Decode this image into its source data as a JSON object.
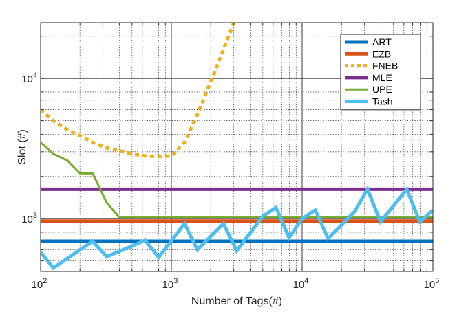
{
  "chart_data": {
    "type": "line",
    "xlabel": "Number of Tags(#)",
    "ylabel": "Slot (#)",
    "xscale": "log",
    "yscale": "log",
    "xlim": [
      100,
      100000
    ],
    "ylim": [
      420,
      25000
    ],
    "grid": true,
    "legend_position": "top-right",
    "x_ticks": [
      {
        "value": 100,
        "base": "10",
        "exp": "2"
      },
      {
        "value": 1000,
        "base": "10",
        "exp": "3"
      },
      {
        "value": 10000,
        "base": "10",
        "exp": "4"
      },
      {
        "value": 100000,
        "base": "10",
        "exp": "5"
      }
    ],
    "y_ticks": [
      {
        "value": 1000,
        "base": "10",
        "exp": "3"
      },
      {
        "value": 10000,
        "base": "10",
        "exp": "4"
      }
    ],
    "series": [
      {
        "name": "ART",
        "color": "#0072BD",
        "style": "solid",
        "x": [
          100,
          100000
        ],
        "y": [
          690,
          690
        ]
      },
      {
        "name": "EZB",
        "color": "#D95319",
        "style": "solid",
        "x": [
          100,
          100000
        ],
        "y": [
          960,
          960
        ]
      },
      {
        "name": "FNEB",
        "color": "#EDB120",
        "style": "dotted",
        "x": [
          100,
          125,
          160,
          200,
          250,
          320,
          400,
          500,
          630,
          800,
          1000,
          1260,
          1580,
          2000,
          2500,
          3000
        ],
        "y": [
          6000,
          5000,
          4300,
          3900,
          3500,
          3200,
          3050,
          2900,
          2800,
          2780,
          2800,
          3500,
          5500,
          9500,
          16000,
          25000
        ]
      },
      {
        "name": "MLE",
        "color": "#7E2F8E",
        "style": "solid",
        "x": [
          100,
          100000
        ],
        "y": [
          1620,
          1620
        ]
      },
      {
        "name": "UPE",
        "color": "#77AC30",
        "style": "solid",
        "x": [
          100,
          125,
          160,
          200,
          250,
          320,
          400,
          100000
        ],
        "y": [
          3500,
          2900,
          2600,
          2100,
          2100,
          1300,
          1020,
          1020
        ]
      },
      {
        "name": "Tash",
        "color": "#4DBEEE",
        "style": "solid",
        "x": [
          100,
          125,
          250,
          320,
          630,
          800,
          1260,
          1580,
          2500,
          3160,
          5000,
          6310,
          7940,
          10000,
          12600,
          15800,
          25100,
          31600,
          39800,
          63100,
          79400,
          100000
        ],
        "y": [
          575,
          445,
          690,
          535,
          700,
          530,
          920,
          600,
          920,
          590,
          1040,
          1200,
          730,
          1000,
          1150,
          720,
          1120,
          1620,
          950,
          1620,
          950,
          1150
        ]
      }
    ]
  }
}
